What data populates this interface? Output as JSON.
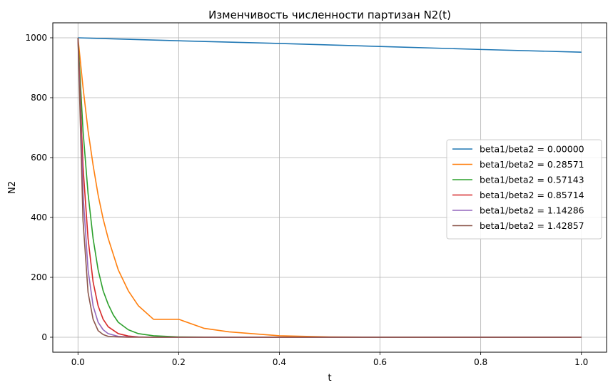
{
  "chart_data": {
    "type": "line",
    "title": "Изменчивость численности партизан N2(t)",
    "xlabel": "t",
    "ylabel": "N2",
    "xlim": [
      -0.05,
      1.05
    ],
    "ylim": [
      -50,
      1050
    ],
    "xticks": [
      0.0,
      0.2,
      0.4,
      0.6,
      0.8,
      1.0
    ],
    "xtick_labels": [
      "0.0",
      "0.2",
      "0.4",
      "0.6",
      "0.8",
      "1.0"
    ],
    "yticks": [
      0,
      200,
      400,
      600,
      800,
      1000
    ],
    "ytick_labels": [
      "0",
      "200",
      "400",
      "600",
      "800",
      "1000"
    ],
    "grid": true,
    "legend_position": "center-right",
    "series": [
      {
        "name": "beta1/beta2 = 0.00000",
        "color": "#1f77b4",
        "x": [
          0,
          0.2,
          0.4,
          0.6,
          0.8,
          1.0
        ],
        "y": [
          1000,
          990,
          981,
          971,
          961,
          952
        ]
      },
      {
        "name": "beta1/beta2 = 0.28571",
        "color": "#ff7f0e",
        "x": [
          0,
          0.01,
          0.02,
          0.03,
          0.04,
          0.05,
          0.06,
          0.08,
          0.1,
          0.12,
          0.15,
          0.2,
          0.25,
          0.3,
          0.4,
          0.5,
          0.6,
          0.8,
          1.0
        ],
        "y": [
          1000,
          835,
          690,
          575,
          475,
          395,
          330,
          225,
          155,
          105,
          60,
          60,
          30,
          18,
          5,
          1,
          0.3,
          0,
          0
        ]
      },
      {
        "name": "beta1/beta2 = 0.57143",
        "color": "#2ca02c",
        "x": [
          0,
          0.01,
          0.02,
          0.03,
          0.04,
          0.05,
          0.06,
          0.07,
          0.08,
          0.1,
          0.12,
          0.15,
          0.2,
          0.3,
          0.5,
          1.0
        ],
        "y": [
          1000,
          690,
          480,
          330,
          225,
          155,
          110,
          75,
          50,
          25,
          12,
          5,
          1,
          0,
          0,
          0
        ]
      },
      {
        "name": "beta1/beta2 = 0.85714",
        "color": "#d62728",
        "x": [
          0,
          0.01,
          0.02,
          0.03,
          0.04,
          0.05,
          0.06,
          0.08,
          0.1,
          0.12,
          0.15,
          0.2,
          0.5,
          1.0
        ],
        "y": [
          1000,
          570,
          330,
          185,
          105,
          60,
          35,
          12,
          4,
          1,
          0,
          0,
          0,
          0
        ]
      },
      {
        "name": "beta1/beta2 = 1.14286",
        "color": "#9467bd",
        "x": [
          0,
          0.01,
          0.02,
          0.03,
          0.04,
          0.05,
          0.06,
          0.08,
          0.1,
          0.15,
          0.5,
          1.0
        ],
        "y": [
          1000,
          480,
          225,
          105,
          50,
          25,
          12,
          3,
          1,
          0,
          0,
          0
        ]
      },
      {
        "name": "beta1/beta2 = 1.42857",
        "color": "#8c564b",
        "x": [
          0,
          0.01,
          0.02,
          0.03,
          0.04,
          0.05,
          0.06,
          0.08,
          0.1,
          0.15,
          0.5,
          1.0
        ],
        "y": [
          1000,
          390,
          150,
          60,
          22,
          9,
          3,
          1,
          0,
          0,
          0,
          0
        ]
      }
    ]
  }
}
